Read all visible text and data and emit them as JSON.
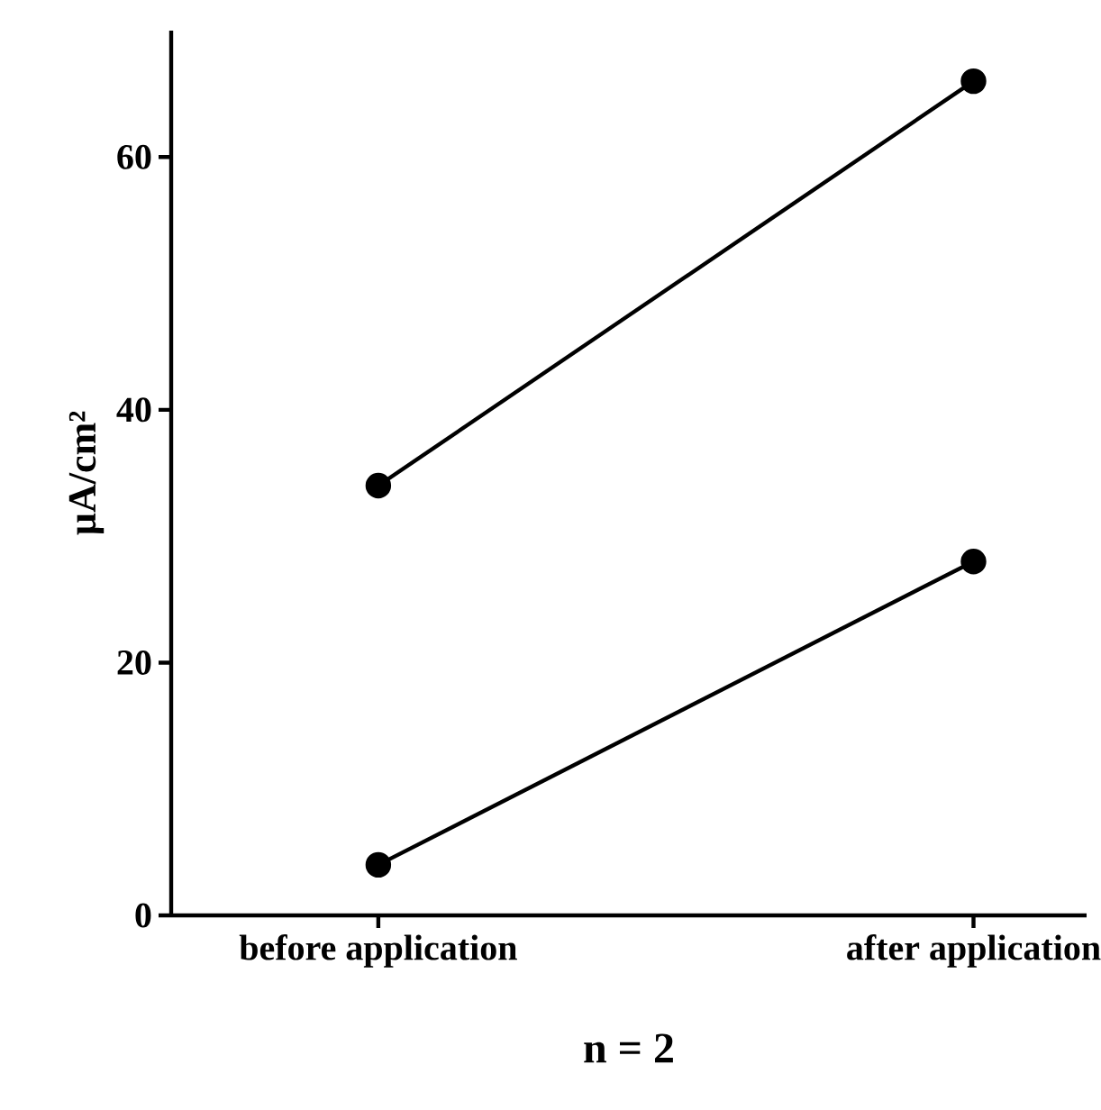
{
  "chart_data": {
    "type": "line",
    "categories": [
      "before application",
      "after application"
    ],
    "series": [
      {
        "color": "#000000",
        "values": [
          34,
          66
        ]
      },
      {
        "color": "#000000",
        "values": [
          4,
          28
        ]
      }
    ],
    "xlabel": "n = 2",
    "ylabel": "µA/cm²",
    "ylim": [
      0,
      70
    ],
    "yticks": [
      0,
      20,
      40,
      60
    ],
    "marker": "circle",
    "line_style": "solid"
  }
}
